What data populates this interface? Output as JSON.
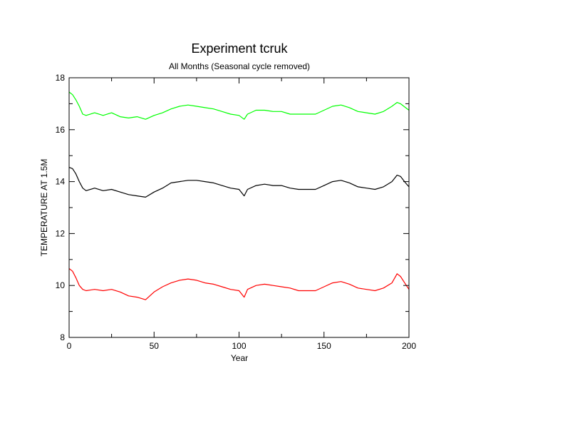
{
  "chart_data": {
    "type": "line",
    "title": "Experiment tcruk",
    "subtitle": "All Months (Seasonal cycle removed)",
    "xlabel": "Year",
    "ylabel": "TEMPERATURE AT 1.5M",
    "xlim": [
      0,
      200
    ],
    "ylim": [
      8,
      18
    ],
    "xticks": [
      0,
      50,
      100,
      150,
      200
    ],
    "yticks": [
      8,
      10,
      12,
      14,
      16,
      18
    ],
    "grid": false,
    "legend": "none",
    "series": [
      {
        "color": "#00ff00",
        "x": [
          0,
          2,
          4,
          6,
          8,
          10,
          15,
          20,
          25,
          30,
          35,
          40,
          45,
          50,
          55,
          60,
          65,
          70,
          75,
          80,
          85,
          90,
          95,
          100,
          103,
          105,
          110,
          115,
          120,
          125,
          130,
          135,
          140,
          145,
          150,
          155,
          160,
          165,
          170,
          175,
          180,
          185,
          190,
          193,
          195,
          198,
          200
        ],
        "values": [
          17.45,
          17.35,
          17.15,
          16.9,
          16.6,
          16.55,
          16.65,
          16.55,
          16.65,
          16.5,
          16.45,
          16.5,
          16.4,
          16.55,
          16.65,
          16.8,
          16.9,
          16.95,
          16.9,
          16.85,
          16.8,
          16.7,
          16.6,
          16.55,
          16.4,
          16.6,
          16.75,
          16.75,
          16.7,
          16.7,
          16.6,
          16.6,
          16.6,
          16.6,
          16.75,
          16.9,
          16.95,
          16.85,
          16.7,
          16.65,
          16.6,
          16.7,
          16.9,
          17.05,
          17.0,
          16.85,
          16.75
        ]
      },
      {
        "color": "#000000",
        "x": [
          0,
          2,
          4,
          6,
          8,
          10,
          15,
          20,
          25,
          30,
          35,
          40,
          45,
          50,
          55,
          60,
          65,
          70,
          75,
          80,
          85,
          90,
          95,
          100,
          103,
          105,
          110,
          115,
          120,
          125,
          130,
          135,
          140,
          145,
          150,
          155,
          160,
          165,
          170,
          175,
          180,
          185,
          190,
          193,
          195,
          198,
          200
        ],
        "values": [
          14.55,
          14.5,
          14.3,
          14.0,
          13.75,
          13.65,
          13.75,
          13.65,
          13.7,
          13.6,
          13.5,
          13.45,
          13.4,
          13.6,
          13.75,
          13.95,
          14.0,
          14.05,
          14.05,
          14.0,
          13.95,
          13.85,
          13.75,
          13.7,
          13.45,
          13.7,
          13.85,
          13.9,
          13.85,
          13.85,
          13.75,
          13.7,
          13.7,
          13.7,
          13.85,
          14.0,
          14.05,
          13.95,
          13.8,
          13.75,
          13.7,
          13.8,
          14.0,
          14.25,
          14.2,
          13.95,
          13.8
        ]
      },
      {
        "color": "#ff0000",
        "x": [
          0,
          2,
          4,
          6,
          8,
          10,
          15,
          20,
          25,
          30,
          35,
          40,
          45,
          50,
          55,
          60,
          65,
          70,
          75,
          80,
          85,
          90,
          95,
          100,
          103,
          105,
          110,
          115,
          120,
          125,
          130,
          135,
          140,
          145,
          150,
          155,
          160,
          165,
          170,
          175,
          180,
          185,
          190,
          193,
          195,
          198,
          200
        ],
        "values": [
          10.65,
          10.55,
          10.3,
          10.0,
          9.85,
          9.8,
          9.85,
          9.8,
          9.85,
          9.75,
          9.6,
          9.55,
          9.45,
          9.75,
          9.95,
          10.1,
          10.2,
          10.25,
          10.2,
          10.1,
          10.05,
          9.95,
          9.85,
          9.8,
          9.55,
          9.85,
          10.0,
          10.05,
          10.0,
          9.95,
          9.9,
          9.8,
          9.8,
          9.8,
          9.95,
          10.1,
          10.15,
          10.05,
          9.9,
          9.85,
          9.8,
          9.9,
          10.1,
          10.45,
          10.35,
          10.05,
          9.85
        ]
      }
    ]
  }
}
